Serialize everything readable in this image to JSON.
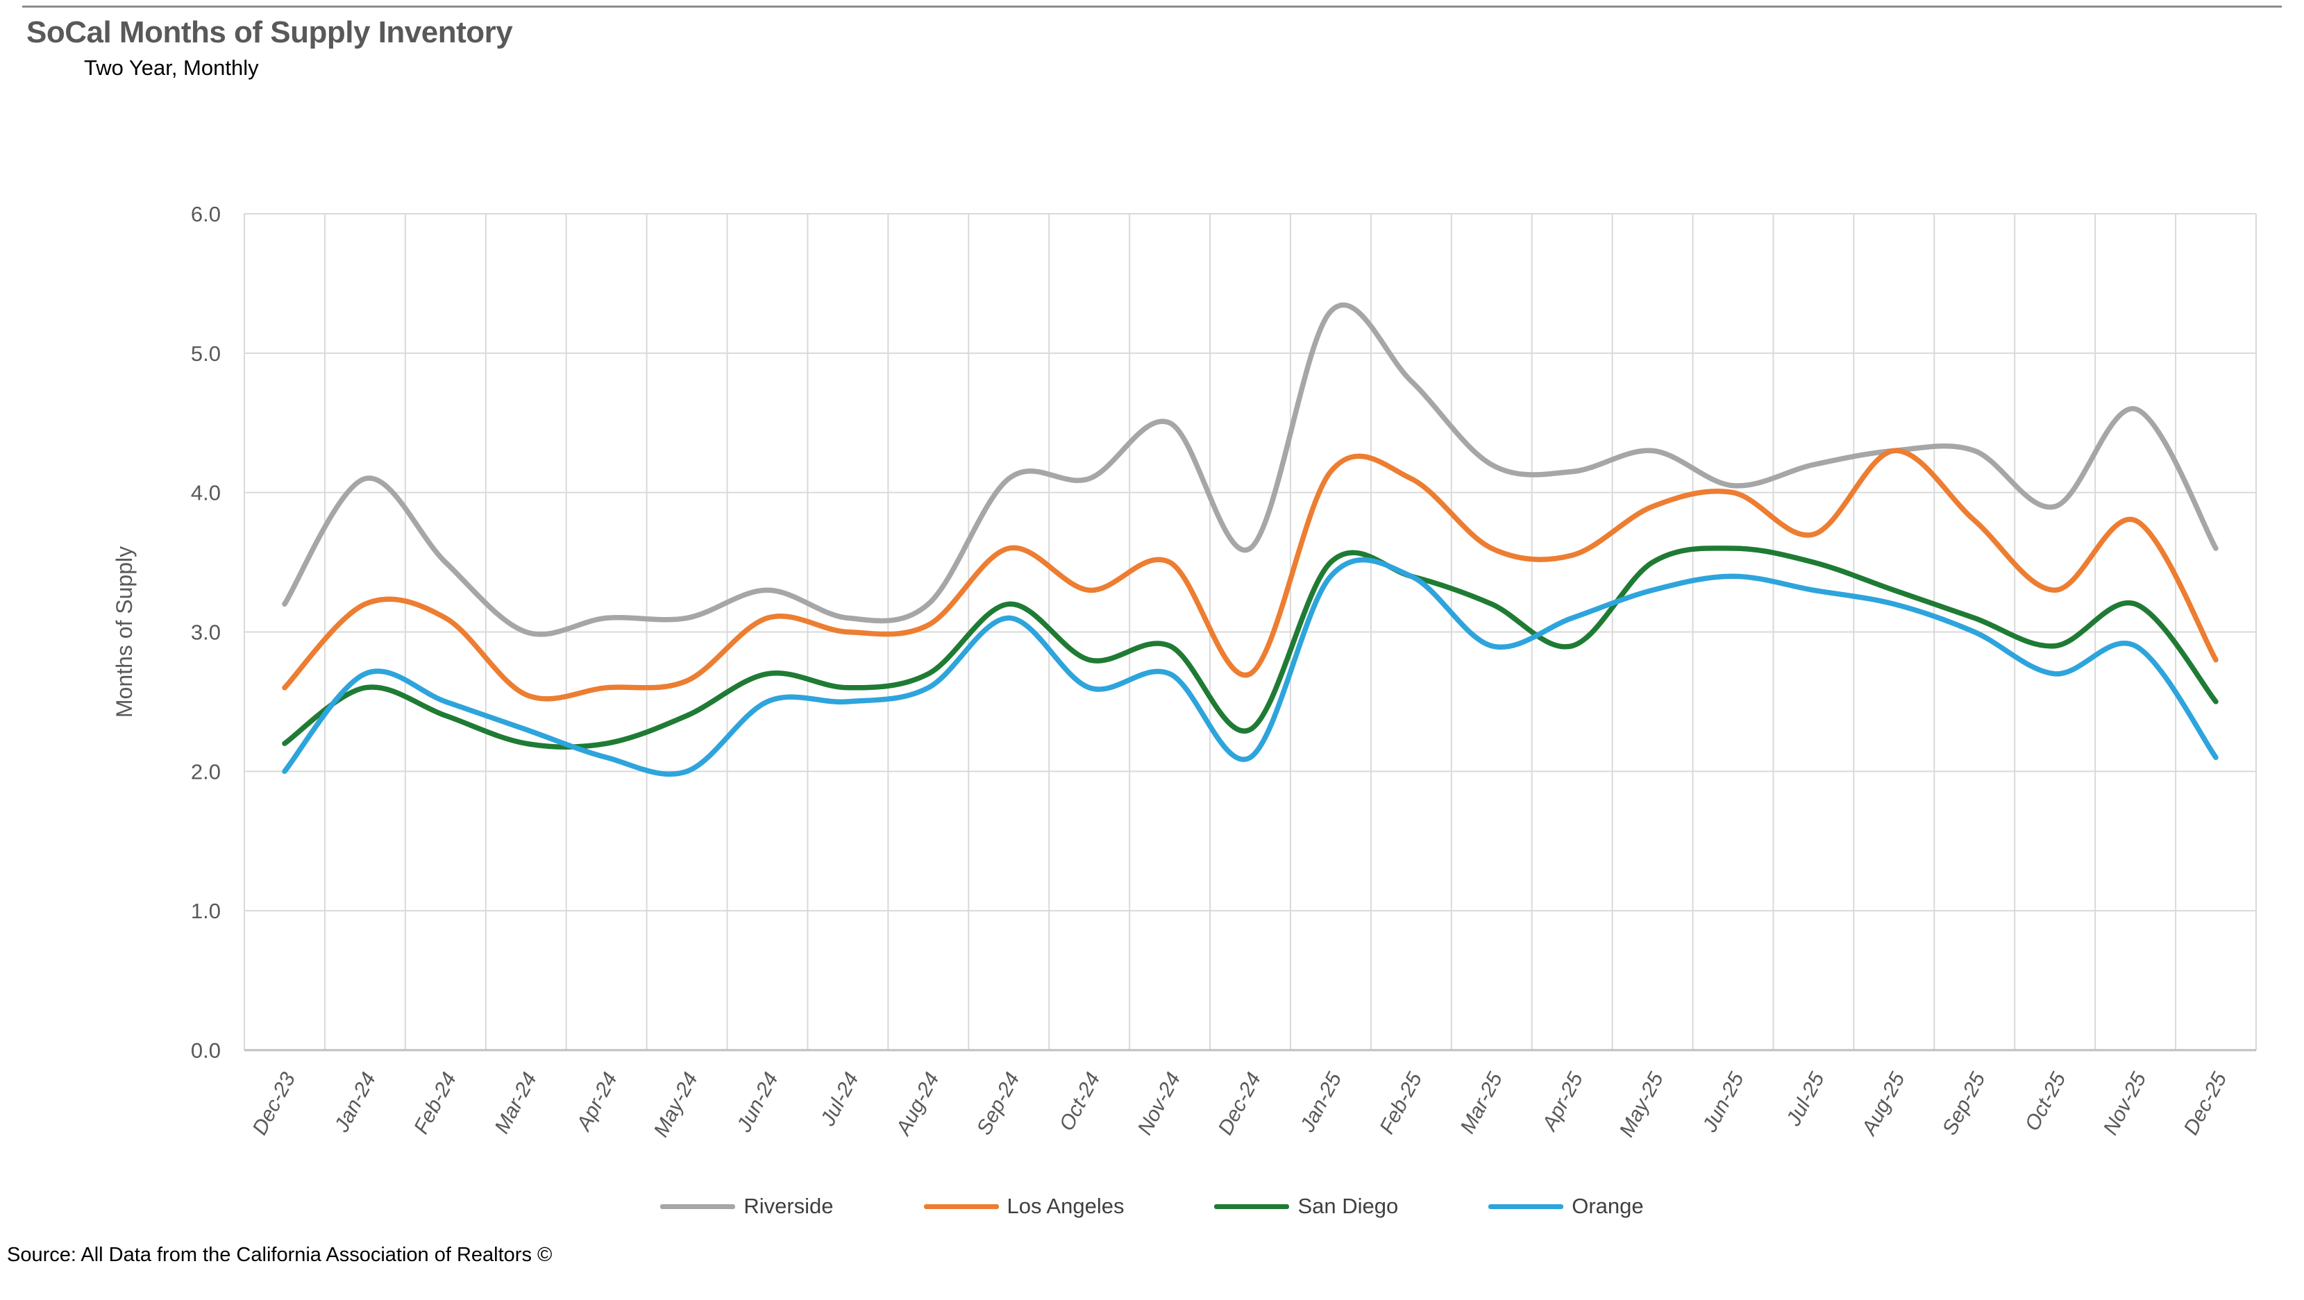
{
  "page": {
    "title": "SoCal Months of Supply Inventory",
    "subtitle": "Two Year, Monthly",
    "source": "Source: All Data from the California Association of Realtors ©"
  },
  "chart_data": {
    "type": "line",
    "title": "SoCal Months of Supply Inventory",
    "subtitle": "Two Year, Monthly",
    "xlabel": "",
    "ylabel": "Months of Supply",
    "ylim": [
      0.0,
      6.0
    ],
    "ytick_step": 1.0,
    "ytick_format_decimals": 1,
    "grid": true,
    "smooth_lines": true,
    "legend_position": "bottom",
    "categories": [
      "Dec-23",
      "Jan-24",
      "Feb-24",
      "Mar-24",
      "Apr-24",
      "May-24",
      "Jun-24",
      "Jul-24",
      "Aug-24",
      "Sep-24",
      "Oct-24",
      "Nov-24",
      "Dec-24",
      "Jan-25",
      "Feb-25",
      "Mar-25",
      "Apr-25",
      "May-25",
      "Jun-25",
      "Jul-25",
      "Aug-25",
      "Sep-25",
      "Oct-25",
      "Nov-25",
      "Dec-25"
    ],
    "series": [
      {
        "name": "Riverside",
        "color": "#A6A6A6",
        "values": [
          3.2,
          4.1,
          3.5,
          3.0,
          3.1,
          3.1,
          3.3,
          3.1,
          3.2,
          4.1,
          4.1,
          4.5,
          3.6,
          5.3,
          4.8,
          4.2,
          4.15,
          4.3,
          4.05,
          4.2,
          4.3,
          4.3,
          3.9,
          4.6,
          3.6
        ]
      },
      {
        "name": "Los Angeles",
        "color": "#ED7D31",
        "values": [
          2.6,
          3.2,
          3.1,
          2.55,
          2.6,
          2.65,
          3.1,
          3.0,
          3.05,
          3.6,
          3.3,
          3.5,
          2.7,
          4.15,
          4.1,
          3.6,
          3.55,
          3.9,
          4.0,
          3.7,
          4.3,
          3.8,
          3.3,
          3.8,
          2.8
        ]
      },
      {
        "name": "San Diego",
        "color": "#1F7B34",
        "values": [
          2.2,
          2.6,
          2.4,
          2.2,
          2.2,
          2.4,
          2.7,
          2.6,
          2.7,
          3.2,
          2.8,
          2.9,
          2.3,
          3.5,
          3.4,
          3.2,
          2.9,
          3.5,
          3.6,
          3.5,
          3.3,
          3.1,
          2.9,
          3.2,
          2.5
        ]
      },
      {
        "name": "Orange",
        "color": "#2EA4DC",
        "values": [
          2.0,
          2.7,
          2.5,
          2.3,
          2.1,
          2.0,
          2.5,
          2.5,
          2.6,
          3.1,
          2.6,
          2.7,
          2.1,
          3.4,
          3.4,
          2.9,
          3.1,
          3.3,
          3.4,
          3.3,
          3.2,
          3.0,
          2.7,
          2.9,
          2.1
        ]
      }
    ]
  }
}
